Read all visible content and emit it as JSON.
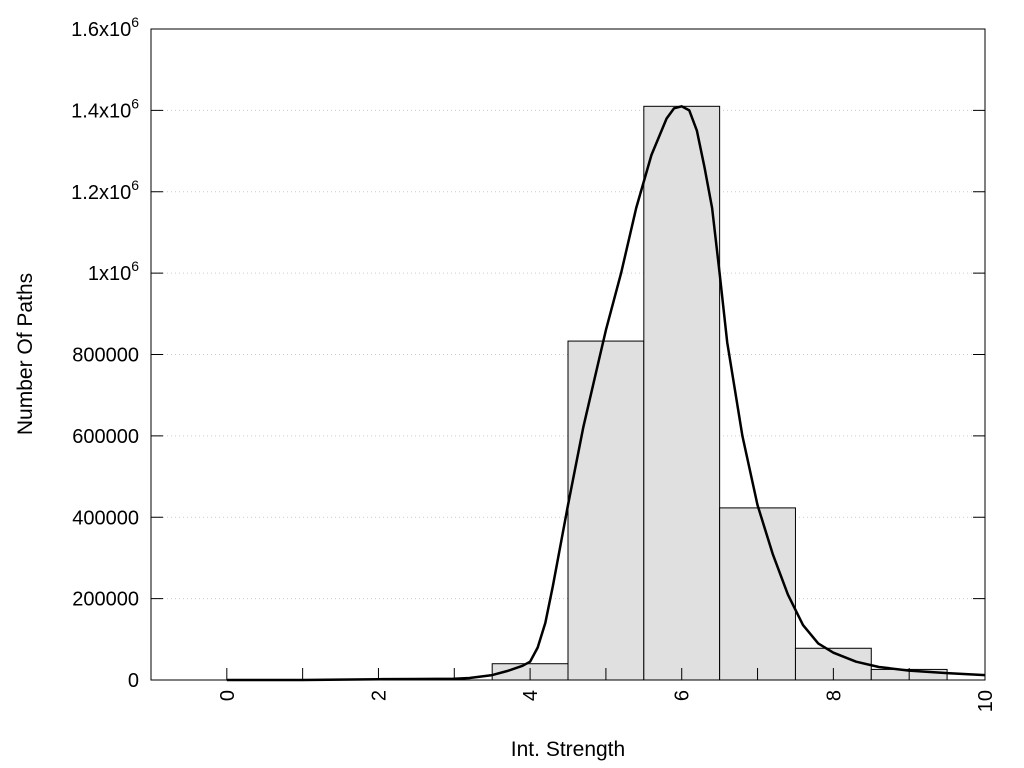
{
  "chart_data": {
    "type": "bar",
    "title": "",
    "xlabel": "Int. Strength",
    "ylabel": "Number Of Paths",
    "xlim": [
      -1,
      10
    ],
    "ylim": [
      0,
      1600000
    ],
    "grid": {
      "y": true,
      "x": false,
      "style": "dotted"
    },
    "x_ticks": [
      {
        "value": 0,
        "label": "0"
      },
      {
        "value": 2,
        "label": "2"
      },
      {
        "value": 4,
        "label": "4"
      },
      {
        "value": 6,
        "label": "6"
      },
      {
        "value": 8,
        "label": "8"
      },
      {
        "value": 10,
        "label": "10"
      }
    ],
    "x_minor_ticks": [
      1,
      3,
      5,
      7,
      9
    ],
    "y_ticks": [
      {
        "value": 0,
        "base": "0",
        "sup": ""
      },
      {
        "value": 200000,
        "base": "200000",
        "sup": ""
      },
      {
        "value": 400000,
        "base": "400000",
        "sup": ""
      },
      {
        "value": 600000,
        "base": "600000",
        "sup": ""
      },
      {
        "value": 800000,
        "base": "800000",
        "sup": ""
      },
      {
        "value": 1000000,
        "base": "1x10",
        "sup": "6"
      },
      {
        "value": 1200000,
        "base": "1.2x10",
        "sup": "6"
      },
      {
        "value": 1400000,
        "base": "1.4x10",
        "sup": "6"
      },
      {
        "value": 1600000,
        "base": "1.6x10",
        "sup": "6"
      }
    ],
    "bins": [
      {
        "center": 0,
        "value": 0
      },
      {
        "center": 1,
        "value": 0
      },
      {
        "center": 2,
        "value": 0
      },
      {
        "center": 3,
        "value": 0
      },
      {
        "center": 4,
        "value": 40000
      },
      {
        "center": 5,
        "value": 833000
      },
      {
        "center": 6,
        "value": 1410000
      },
      {
        "center": 7,
        "value": 423000
      },
      {
        "center": 8,
        "value": 78000
      },
      {
        "center": 9,
        "value": 26000
      }
    ],
    "bin_width": 1,
    "curve": {
      "x": [
        0,
        1,
        2,
        2.5,
        3,
        3.2,
        3.5,
        3.7,
        3.9,
        4.0,
        4.1,
        4.2,
        4.3,
        4.5,
        4.7,
        4.9,
        5.0,
        5.2,
        5.4,
        5.6,
        5.8,
        5.9,
        6.0,
        6.1,
        6.2,
        6.3,
        6.4,
        6.5,
        6.6,
        6.8,
        7.0,
        7.2,
        7.4,
        7.6,
        7.8,
        8.0,
        8.3,
        8.6,
        9.0,
        9.5,
        10.0
      ],
      "y": [
        0,
        0,
        2000,
        2500,
        3000,
        5000,
        12000,
        22000,
        35000,
        45000,
        80000,
        140000,
        230000,
        430000,
        620000,
        780000,
        860000,
        1000000,
        1160000,
        1290000,
        1380000,
        1405000,
        1410000,
        1400000,
        1350000,
        1260000,
        1160000,
        1000000,
        830000,
        600000,
        430000,
        310000,
        210000,
        135000,
        90000,
        67000,
        45000,
        32000,
        23000,
        17000,
        12000
      ]
    },
    "colors": {
      "bar_fill": "#e0e0e0",
      "bar_stroke": "#000000",
      "curve": "#000000",
      "grid": "#cccccc"
    }
  }
}
